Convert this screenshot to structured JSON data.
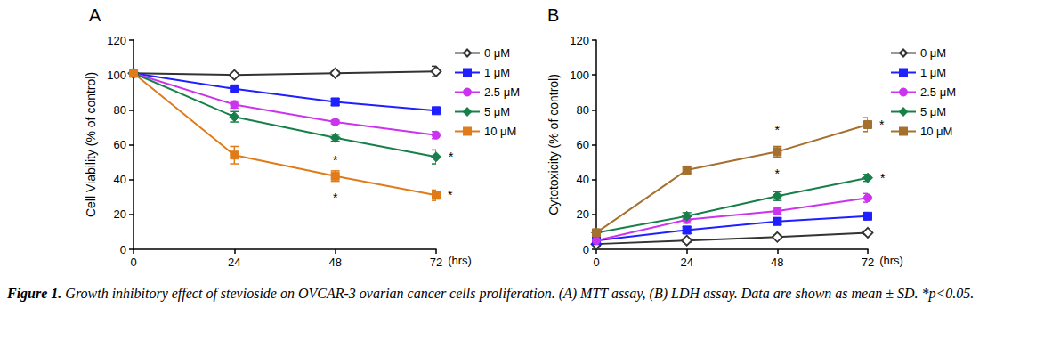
{
  "caption": {
    "label": "Figure 1.",
    "text": "Growth inhibitory effect of stevioside on OVCAR-3 ovarian cancer cells proliferation. (A) MTT assay, (B) LDH assay. Data are shown as mean ± SD. *p<0.05."
  },
  "chart_data": [
    {
      "type": "line",
      "title": "A",
      "x_label": "(hrs)",
      "y_label": "Cell Viability (% of control)",
      "x": [
        0,
        24,
        48,
        72
      ],
      "xlim": [
        0,
        72
      ],
      "xticks": [
        0,
        24,
        48,
        72
      ],
      "ylim": [
        0,
        120
      ],
      "yticks": [
        0,
        20,
        40,
        60,
        80,
        100,
        120
      ],
      "grid": false,
      "legend": "right",
      "series": [
        {
          "name": "0 μM",
          "color": "#333333",
          "marker": "open_diamond",
          "values": [
            101,
            100,
            101,
            102
          ],
          "errors": [
            1,
            1,
            1,
            3
          ],
          "significance": [
            null,
            null,
            null,
            null
          ]
        },
        {
          "name": "1 μM",
          "color": "#1f1fff",
          "marker": "square",
          "values": [
            101,
            92,
            84.5,
            79.5
          ],
          "errors": [
            1,
            1,
            2,
            1
          ],
          "significance": [
            null,
            null,
            null,
            null
          ]
        },
        {
          "name": "2.5 μM",
          "color": "#cc33ee",
          "marker": "circle",
          "values": [
            101,
            83,
            73,
            65.5
          ],
          "errors": [
            1,
            2,
            1,
            2
          ],
          "significance": [
            null,
            null,
            null,
            null
          ]
        },
        {
          "name": "5 μM",
          "color": "#17804a",
          "marker": "diamond",
          "values": [
            101,
            76,
            64,
            53
          ],
          "errors": [
            1,
            3,
            2,
            4
          ],
          "significance": [
            null,
            null,
            "*",
            "*"
          ]
        },
        {
          "name": "10 μM",
          "color": "#e07b1a",
          "marker": "square",
          "values": [
            101,
            54,
            42,
            31
          ],
          "errors": [
            1,
            5,
            3,
            3
          ],
          "significance": [
            null,
            null,
            "*",
            "*"
          ]
        }
      ]
    },
    {
      "type": "line",
      "title": "B",
      "x_label": "(hrs)",
      "y_label": "Cytotoxicity (% of control)",
      "x": [
        0,
        24,
        48,
        72
      ],
      "xlim": [
        0,
        72
      ],
      "xticks": [
        0,
        24,
        48,
        72
      ],
      "ylim": [
        0,
        120
      ],
      "yticks": [
        0,
        20,
        40,
        60,
        80,
        100,
        120
      ],
      "grid": false,
      "legend": "right",
      "series": [
        {
          "name": "0 μM",
          "color": "#333333",
          "marker": "open_diamond",
          "values": [
            3,
            5,
            7,
            9.5
          ],
          "errors": [
            1,
            1,
            1,
            1
          ],
          "significance": [
            null,
            null,
            null,
            null
          ]
        },
        {
          "name": "1 μM",
          "color": "#1f1fff",
          "marker": "square",
          "values": [
            5,
            11,
            16,
            19
          ],
          "errors": [
            1,
            2,
            2,
            2
          ],
          "significance": [
            null,
            null,
            null,
            null
          ]
        },
        {
          "name": "2.5 μM",
          "color": "#cc33ee",
          "marker": "circle",
          "values": [
            5,
            17,
            22,
            29.5
          ],
          "errors": [
            1,
            2,
            2,
            2.5
          ],
          "significance": [
            null,
            null,
            null,
            null
          ]
        },
        {
          "name": "5 μM",
          "color": "#17804a",
          "marker": "diamond",
          "values": [
            9.5,
            19,
            30.5,
            41
          ],
          "errors": [
            1,
            2,
            2.5,
            2
          ],
          "significance": [
            null,
            null,
            "*",
            "*"
          ]
        },
        {
          "name": "10 μM",
          "color": "#a5702e",
          "marker": "square",
          "values": [
            9.5,
            45.5,
            56,
            71.5
          ],
          "errors": [
            1,
            2,
            3,
            4
          ],
          "significance": [
            null,
            null,
            "*",
            "*"
          ]
        }
      ]
    }
  ]
}
